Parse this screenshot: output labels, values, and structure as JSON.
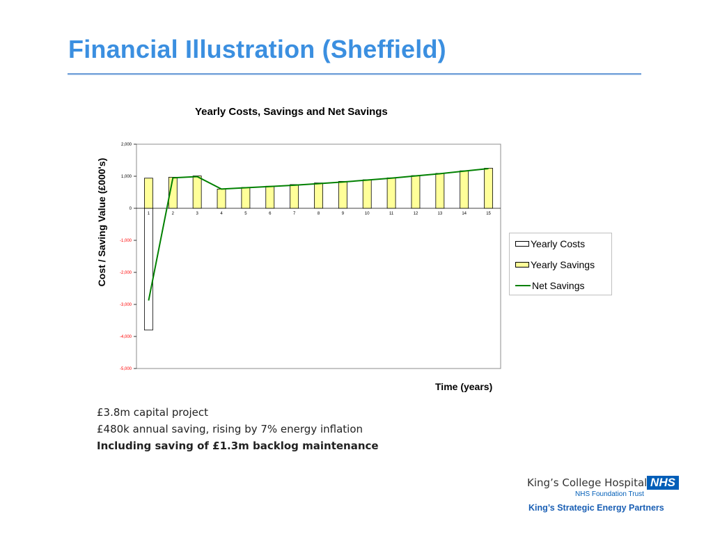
{
  "slide": {
    "title": "Financial Illustration (Sheffield)"
  },
  "notes": {
    "line1": "£3.8m capital project",
    "line2": "£480k annual saving, rising by 7% energy inflation",
    "line3": "Including saving of £1.3m backlog maintenance"
  },
  "footer": {
    "hospital": "King’s College Hospital",
    "nhs_logo": "NHS",
    "trust": "NHS Foundation Trust",
    "partners": "King’s Strategic Energy Partners"
  },
  "colors": {
    "title": "#3b8fe0",
    "savings_fill": "#ffff99",
    "costs_fill": "#ffffff",
    "net_line": "#008000",
    "negative_tick": "#ff0000"
  },
  "chart_data": {
    "type": "bar",
    "title": "Yearly Costs, Savings and Net Savings",
    "xlabel": "Time (years)",
    "ylabel": "Cost / Saving Value (£000's)",
    "ylim": [
      -5000,
      2000
    ],
    "y_ticks": [
      2000,
      1000,
      0,
      -1000,
      -2000,
      -3000,
      -4000,
      -5000
    ],
    "y_tick_labels": [
      "2,000",
      "1,000",
      "0",
      "-1,000",
      "-2,000",
      "-3,000",
      "-4,000",
      "-5,000"
    ],
    "categories": [
      "1",
      "2",
      "3",
      "4",
      "5",
      "6",
      "7",
      "8",
      "9",
      "10",
      "11",
      "12",
      "13",
      "14",
      "15"
    ],
    "grid": false,
    "legend_position": "right",
    "series": [
      {
        "name": "Yearly Costs",
        "kind": "bar",
        "values": [
          -3800,
          0,
          0,
          0,
          0,
          0,
          0,
          0,
          0,
          0,
          0,
          0,
          0,
          0,
          0
        ]
      },
      {
        "name": "Yearly Savings",
        "kind": "bar",
        "values": [
          940,
          970,
          1010,
          600,
          650,
          690,
          740,
          790,
          840,
          890,
          950,
          1020,
          1090,
          1170,
          1250
        ]
      },
      {
        "name": "Net Savings",
        "kind": "line",
        "values": [
          -2880,
          950,
          990,
          600,
          640,
          680,
          720,
          770,
          820,
          880,
          940,
          1010,
          1080,
          1160,
          1240
        ]
      }
    ]
  }
}
